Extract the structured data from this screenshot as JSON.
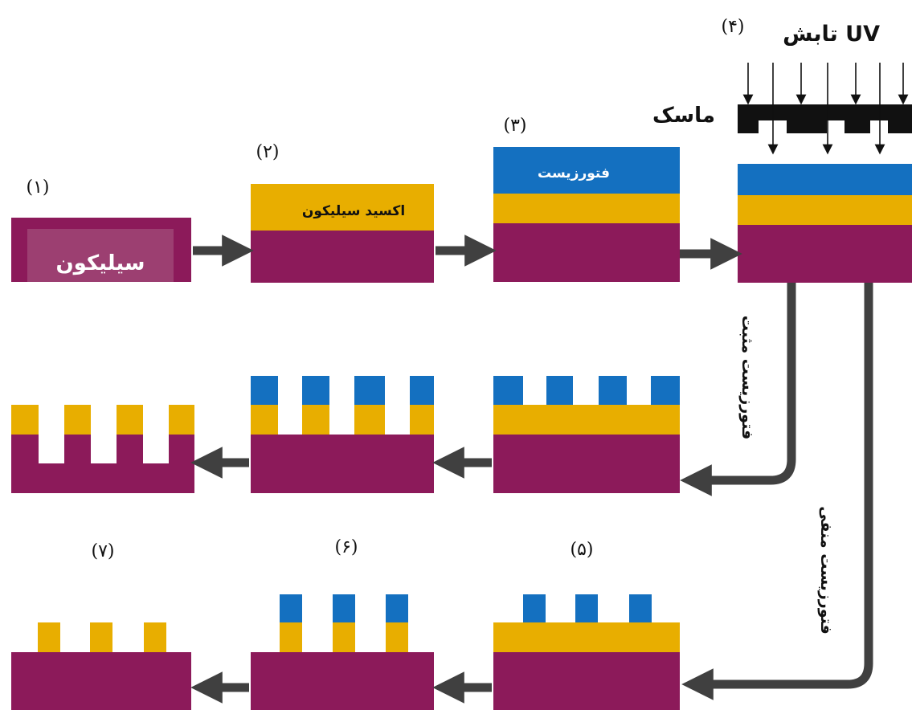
{
  "colors": {
    "silicon": "#8C1A5A",
    "oxide": "#E8AE00",
    "photoresist": "#1470C0",
    "arrow": "#404040",
    "mask": "#111111"
  },
  "steps": {
    "s1": "(۱)",
    "s2": "(۲)",
    "s3": "(۳)",
    "s4": "(۴)",
    "s5": "(۵)",
    "s6": "(۶)",
    "s7": "(۷)"
  },
  "labels": {
    "silicon": "سیلیکون",
    "silicon_oxide": "اکسید سیلیکون",
    "photoresist": "فتورزیست",
    "uv": "تابش UV",
    "mask": "ماسک",
    "positive": "فتورزیست مثبت",
    "negative": "فتورزیست منفی"
  }
}
